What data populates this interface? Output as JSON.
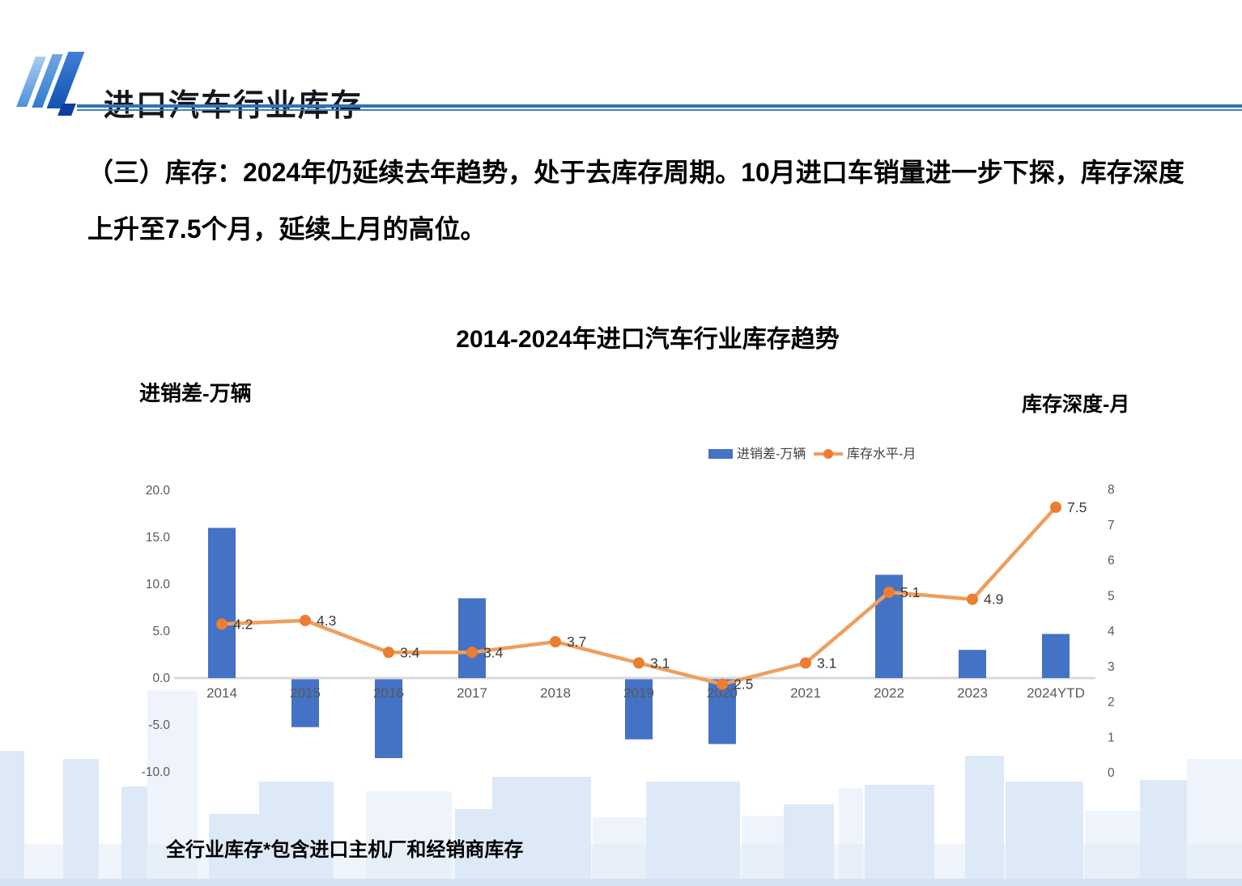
{
  "header": {
    "title": "进口汽车行业库存"
  },
  "intro_text": "（三）库存：2024年仍延续去年趋势，处于去库存周期。10月进口车销量进一步下探，库存深度上升至7.5个月，延续上月的高位。",
  "footnote": "全行业库存*包含进口主机厂和经销商库存",
  "chart_data": {
    "type": "bar+line dual-axis combo",
    "title": "2014-2024年进口汽车行业库存趋势",
    "categories": [
      "2014",
      "2015",
      "2016",
      "2017",
      "2018",
      "2019",
      "2020",
      "2021",
      "2022",
      "2023",
      "2024YTD"
    ],
    "series": [
      {
        "name": "进销差-万辆",
        "type": "bar",
        "axis": "left",
        "color": "#4472C4",
        "values": [
          16.0,
          -5.1,
          -8.4,
          8.5,
          0,
          -6.4,
          -6.9,
          0,
          11.0,
          3.0,
          4.7
        ]
      },
      {
        "name": "库存水平-月",
        "type": "line",
        "axis": "right",
        "color": "#ED7D31",
        "line_color": "#F09E5C",
        "values": [
          4.2,
          4.3,
          3.4,
          3.4,
          3.7,
          3.1,
          2.5,
          3.1,
          5.1,
          4.9,
          7.5
        ],
        "point_labels": [
          "4.2",
          "4.3",
          "3.4",
          "3.4",
          "3.7",
          "3.1",
          "2.5",
          "3.1",
          "5.1",
          "4.9",
          "7.5"
        ]
      }
    ],
    "left_axis": {
      "title": "进销差-万辆",
      "min": -10,
      "max": 20,
      "step": 5,
      "tick_labels": [
        "20.0",
        "15.0",
        "10.0",
        "5.0",
        "0.0",
        "-5.0",
        "-10.0"
      ]
    },
    "right_axis": {
      "title": "库存深度-月",
      "min": 0,
      "max": 8,
      "step": 1,
      "tick_labels": [
        "8",
        "7",
        "6",
        "5",
        "4",
        "3",
        "2",
        "1",
        "0"
      ]
    },
    "legend": {
      "position": "top-center",
      "entries": [
        "进销差-万辆",
        "库存水平-月"
      ]
    },
    "grid": false
  },
  "colors": {
    "bar": "#4472C4",
    "line": "#F09E5C",
    "marker": "#ED7D31",
    "accent_blue": "#2E74B5",
    "axis_text": "#595959",
    "axis_line": "#D9D9D9",
    "skyline_light": "#EFF4FC",
    "skyline_mid": "#DDE9F7"
  }
}
